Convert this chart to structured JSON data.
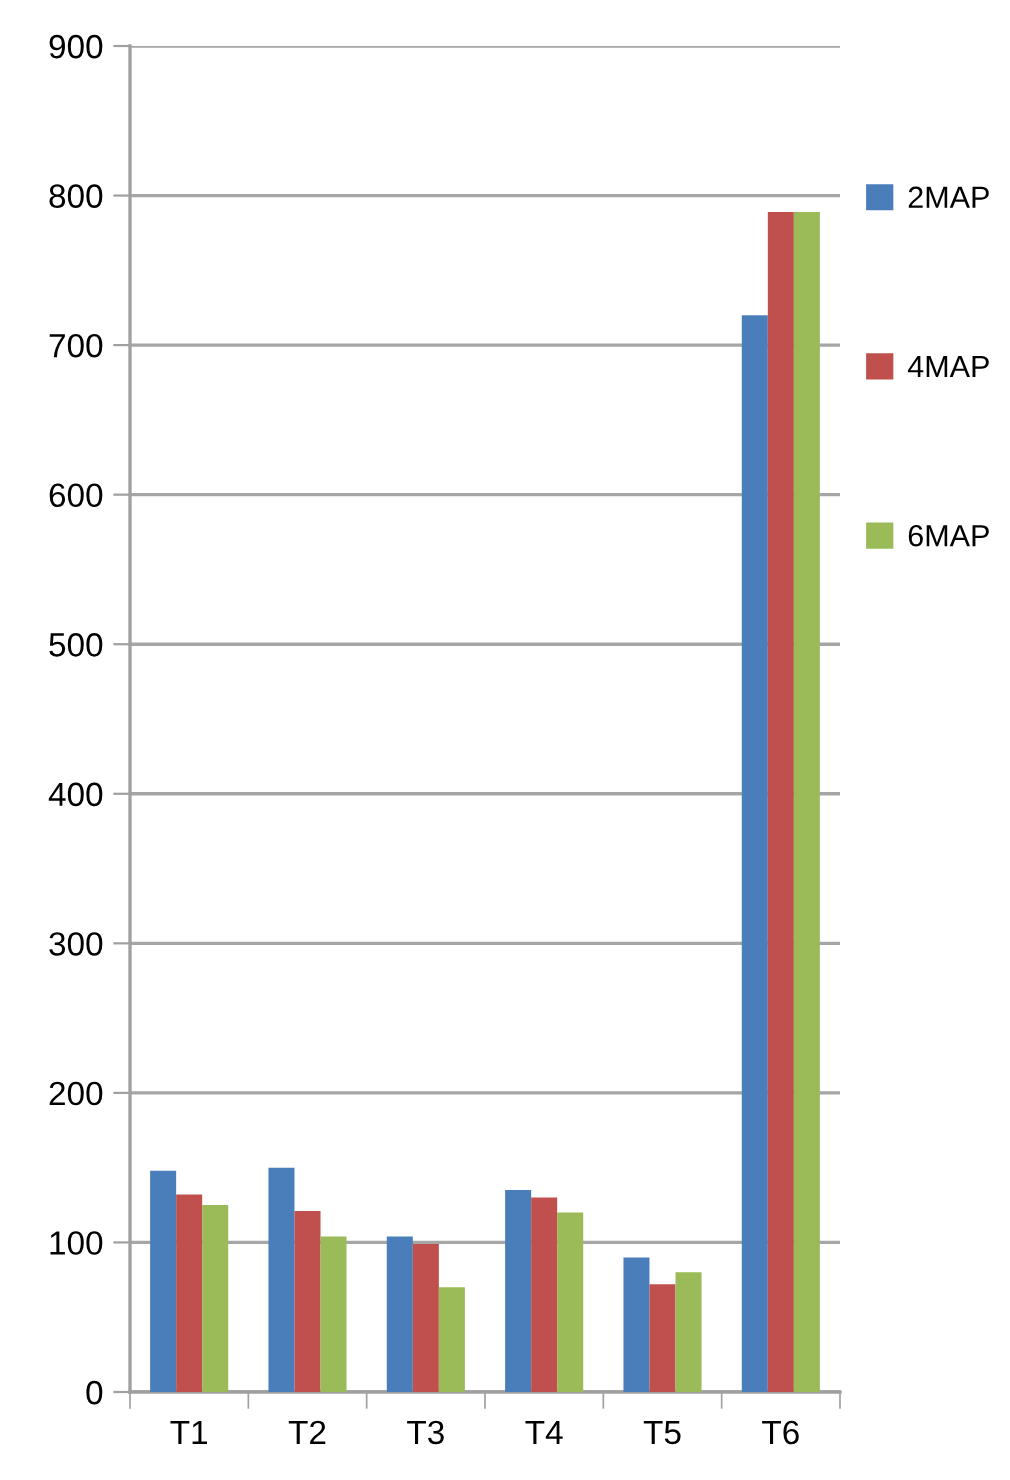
{
  "chart_data": {
    "type": "bar",
    "categories": [
      "T1",
      "T2",
      "T3",
      "T4",
      "T5",
      "T6"
    ],
    "series": [
      {
        "name": "2MAP",
        "color": "#4a7ebb",
        "values": [
          148,
          150,
          104,
          135,
          90,
          720
        ]
      },
      {
        "name": "4MAP",
        "color": "#c0504d",
        "values": [
          132,
          121,
          99,
          130,
          72,
          789
        ]
      },
      {
        "name": "6MAP",
        "color": "#9bbb59",
        "values": [
          125,
          104,
          70,
          120,
          80,
          789
        ]
      }
    ],
    "ylim": [
      0,
      900
    ],
    "yticks": [
      0,
      100,
      200,
      300,
      400,
      500,
      600,
      700,
      800,
      900
    ],
    "grid": "y",
    "legend": "right"
  }
}
